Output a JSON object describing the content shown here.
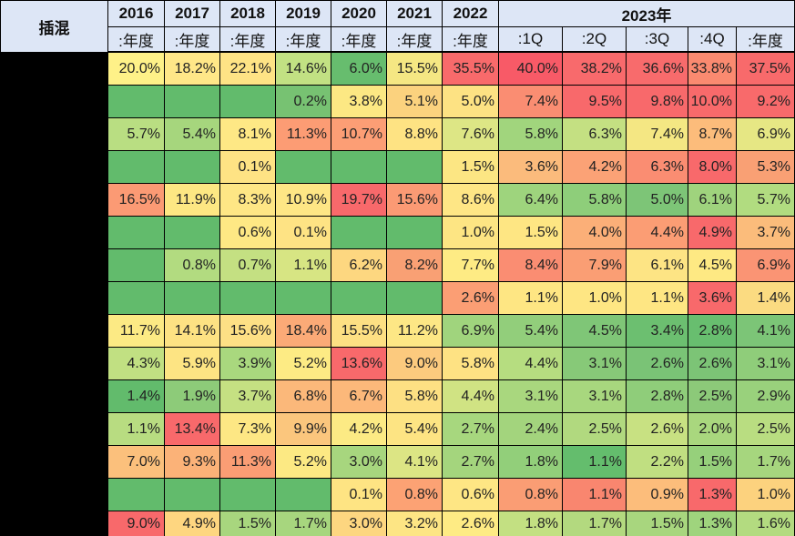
{
  "corner_label": "插混",
  "chart_data": {
    "type": "table",
    "header_years": [
      {
        "label": "2016",
        "span": 1
      },
      {
        "label": "2017",
        "span": 1
      },
      {
        "label": "2018",
        "span": 1
      },
      {
        "label": "2019",
        "span": 1
      },
      {
        "label": "2020",
        "span": 1
      },
      {
        "label": "2021",
        "span": 1
      },
      {
        "label": "2022",
        "span": 1
      },
      {
        "label": "2023年",
        "span": 5
      }
    ],
    "columns": [
      ":年度",
      ":年度",
      ":年度",
      ":年度",
      ":年度",
      ":年度",
      ":年度",
      ":1Q",
      ":2Q",
      ":3Q",
      ":4Q",
      ":年度"
    ],
    "row_labels": [
      "",
      "",
      "",
      "",
      "",
      "",
      "",
      "",
      "",
      "",
      "",
      "",
      "",
      "",
      ""
    ],
    "rows": [
      [
        "20.0%",
        "18.2%",
        "22.1%",
        "14.6%",
        "6.0%",
        "15.5%",
        "35.5%",
        "40.0%",
        "38.2%",
        "36.6%",
        "33.8%",
        "37.5%"
      ],
      [
        "",
        "",
        "",
        "0.2%",
        "3.8%",
        "5.1%",
        "5.0%",
        "7.4%",
        "9.5%",
        "9.8%",
        "10.0%",
        "9.2%"
      ],
      [
        "5.7%",
        "5.4%",
        "8.1%",
        "11.3%",
        "10.7%",
        "8.8%",
        "7.6%",
        "5.8%",
        "6.3%",
        "7.4%",
        "8.7%",
        "6.9%"
      ],
      [
        "",
        "",
        "0.1%",
        "",
        "",
        "",
        "1.5%",
        "3.6%",
        "4.2%",
        "6.3%",
        "8.0%",
        "5.3%"
      ],
      [
        "16.5%",
        "11.9%",
        "8.3%",
        "10.9%",
        "19.7%",
        "15.6%",
        "8.6%",
        "6.4%",
        "5.8%",
        "5.0%",
        "6.1%",
        "5.7%"
      ],
      [
        "",
        "",
        "0.6%",
        "0.1%",
        "",
        "",
        "1.0%",
        "1.5%",
        "4.0%",
        "4.4%",
        "4.9%",
        "3.7%"
      ],
      [
        "",
        "0.8%",
        "0.7%",
        "1.1%",
        "6.2%",
        "8.2%",
        "7.7%",
        "8.4%",
        "7.9%",
        "6.1%",
        "4.5%",
        "6.9%"
      ],
      [
        "",
        "",
        "",
        "",
        "",
        "",
        "2.6%",
        "1.1%",
        "1.0%",
        "1.1%",
        "3.6%",
        "1.4%"
      ],
      [
        "11.7%",
        "14.1%",
        "15.6%",
        "18.4%",
        "15.5%",
        "11.2%",
        "6.9%",
        "5.4%",
        "4.5%",
        "3.4%",
        "2.8%",
        "4.1%"
      ],
      [
        "4.3%",
        "5.9%",
        "3.9%",
        "5.2%",
        "13.6%",
        "9.0%",
        "5.8%",
        "4.4%",
        "3.1%",
        "2.6%",
        "2.6%",
        "3.1%"
      ],
      [
        "1.4%",
        "1.9%",
        "3.7%",
        "6.8%",
        "6.7%",
        "5.8%",
        "4.4%",
        "3.1%",
        "3.1%",
        "2.8%",
        "2.5%",
        "2.9%"
      ],
      [
        "1.1%",
        "13.4%",
        "7.3%",
        "9.9%",
        "4.2%",
        "5.4%",
        "2.7%",
        "2.4%",
        "2.5%",
        "2.6%",
        "2.0%",
        "2.5%"
      ],
      [
        "7.0%",
        "9.3%",
        "11.3%",
        "5.2%",
        "3.0%",
        "4.1%",
        "2.7%",
        "1.8%",
        "1.1%",
        "2.2%",
        "1.5%",
        "1.7%"
      ],
      [
        "",
        "",
        "",
        "",
        "0.1%",
        "0.8%",
        "0.6%",
        "0.8%",
        "1.1%",
        "0.9%",
        "1.3%",
        "1.0%"
      ],
      [
        "9.0%",
        "4.9%",
        "1.5%",
        "1.7%",
        "3.0%",
        "3.2%",
        "2.6%",
        "1.8%",
        "1.7%",
        "1.5%",
        "1.3%",
        "1.6%"
      ]
    ],
    "colors": [
      [
        "#fef188",
        "#ffe788",
        "#fee385",
        "#c2e183",
        "#67bd6e",
        "#f5e783",
        "#f86a6b",
        "#f85a67",
        "#f86a6c",
        "#f86b6c",
        "#fa8a70",
        "#f86a6b"
      ],
      [
        "#62bb6c",
        "#62bb6c",
        "#62bb6c",
        "#77c272",
        "#fce883",
        "#fbd27e",
        "#fde283",
        "#fa8d72",
        "#f8696b",
        "#f8696b",
        "#f86a6b",
        "#f86a6b"
      ],
      [
        "#b9de82",
        "#a6d67d",
        "#fee885",
        "#fc9c74",
        "#fc9e75",
        "#fee383",
        "#dde685",
        "#a1d57d",
        "#c4e082",
        "#f4e783",
        "#fcbc7b",
        "#e6e784"
      ],
      [
        "#62bb6c",
        "#62bb6c",
        "#fee384",
        "#62bb6c",
        "#62bb6c",
        "#62bb6c",
        "#fce683",
        "#fbbb7c",
        "#fba276",
        "#fa8d72",
        "#f8696b",
        "#f9a074"
      ],
      [
        "#fb9a74",
        "#fde783",
        "#fee685",
        "#fee685",
        "#f8696b",
        "#fb9a74",
        "#fee685",
        "#9ed47d",
        "#8ece7a",
        "#7dc577",
        "#9fd37d",
        "#b1dc80"
      ],
      [
        "#62bb6c",
        "#62bb6c",
        "#fee884",
        "#fee384",
        "#62bb6c",
        "#62bb6c",
        "#fde583",
        "#fee683",
        "#fbaf78",
        "#fb9d74",
        "#f8696b",
        "#fbbc7b"
      ],
      [
        "#62bb6c",
        "#b2db80",
        "#c4e082",
        "#d7e583",
        "#fdd780",
        "#f9a074",
        "#feeb84",
        "#fa8d72",
        "#fa9e74",
        "#fde484",
        "#fee983",
        "#fa9474"
      ],
      [
        "#62bb6c",
        "#62bb6c",
        "#62bb6c",
        "#62bb6c",
        "#62bb6c",
        "#62bb6c",
        "#fb9e74",
        "#fee683",
        "#fee683",
        "#fee683",
        "#f8696b",
        "#fbdb81"
      ],
      [
        "#fcea84",
        "#fde283",
        "#fde085",
        "#fbaa77",
        "#fde083",
        "#fde785",
        "#a0d47d",
        "#92ce7b",
        "#7fc677",
        "#6cbf70",
        "#68be6f",
        "#7cc577"
      ],
      [
        "#c1e082",
        "#fde483",
        "#a9d87e",
        "#fdeb84",
        "#f8696b",
        "#fcca7e",
        "#fee283",
        "#b6dd80",
        "#87c978",
        "#7ac376",
        "#7cc476",
        "#8fcd7a"
      ],
      [
        "#62bb6c",
        "#8dcb79",
        "#c5e082",
        "#fbb87a",
        "#fcb87a",
        "#fde083",
        "#d0e383",
        "#a9d77e",
        "#a8d77e",
        "#8fcd7a",
        "#8cc979",
        "#99d17c"
      ],
      [
        "#b8dc81",
        "#f8696b",
        "#fde784",
        "#fbc67d",
        "#fcea84",
        "#fde483",
        "#a7d77e",
        "#a3d47d",
        "#b1d97f",
        "#c8e182",
        "#a9d77e",
        "#b9dd81"
      ],
      [
        "#fbc07c",
        "#fbb278",
        "#fa9d74",
        "#fce983",
        "#a7d67e",
        "#dce584",
        "#a4d57d",
        "#92cf7a",
        "#64bd6d",
        "#c0df81",
        "#96d07b",
        "#a6d67e"
      ],
      [
        "#62bb6c",
        "#62bb6c",
        "#62bb6c",
        "#62bb6c",
        "#fee483",
        "#fca274",
        "#fee684",
        "#fa9d74",
        "#f9866f",
        "#fcbd7b",
        "#f8696b",
        "#fcd27e"
      ],
      [
        "#f8696b",
        "#fed680",
        "#a8d67e",
        "#a7d67e",
        "#fdd680",
        "#fde584",
        "#feeb84",
        "#c3e082",
        "#b3d97f",
        "#a8d67e",
        "#9fd47d",
        "#b3db80"
      ]
    ]
  }
}
